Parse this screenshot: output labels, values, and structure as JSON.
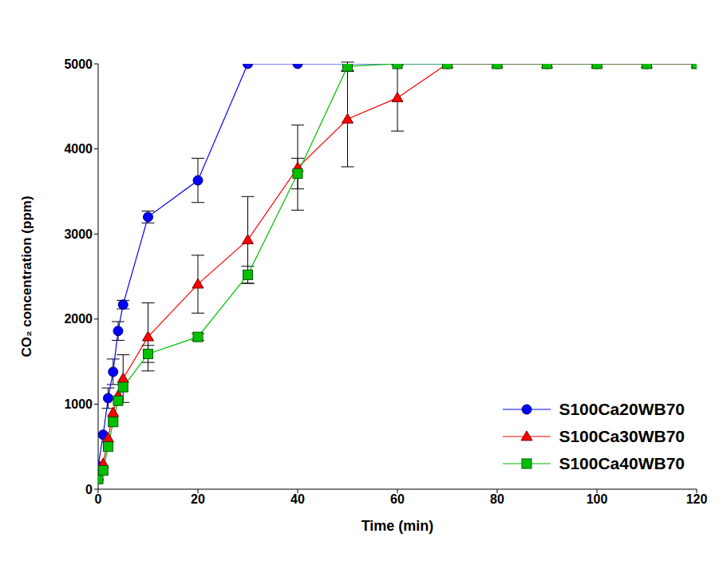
{
  "chart_data": {
    "type": "line",
    "x_label": "Time (min)",
    "y_label": "CO₂ concentration (ppm)",
    "x": [
      0,
      1,
      2,
      3,
      4,
      5,
      10,
      20,
      30,
      40,
      50,
      60,
      70,
      80,
      90,
      100,
      110,
      120
    ],
    "xlim": [
      0,
      120
    ],
    "xticks": [
      0,
      20,
      40,
      60,
      80,
      100,
      120
    ],
    "ylim": [
      0,
      5000
    ],
    "yticks": [
      0,
      1000,
      2000,
      3000,
      4000,
      5000
    ],
    "grid": false,
    "legend": "lower right",
    "series": [
      {
        "name": "S100Ca20WB70",
        "color": "#0000ff",
        "marker": "circle",
        "values": [
          270,
          640,
          1070,
          1380,
          1860,
          2170,
          3200,
          3630,
          5000,
          5000,
          5000,
          5000,
          5000,
          5000,
          5000,
          5000,
          5000,
          5000
        ],
        "errors": [
          null,
          null,
          120,
          150,
          110,
          50,
          70,
          260,
          null,
          null,
          null,
          null,
          null,
          null,
          null,
          null,
          null,
          null
        ]
      },
      {
        "name": "S100Ca30WB70",
        "color": "#ff0000",
        "marker": "triangle",
        "values": [
          150,
          300,
          600,
          900,
          1100,
          1300,
          1790,
          2410,
          2930,
          3780,
          4350,
          4600,
          5000,
          5000,
          5000,
          5000,
          5000,
          5000
        ],
        "errors": [
          null,
          null,
          null,
          null,
          null,
          280,
          400,
          340,
          510,
          500,
          560,
          390,
          null,
          null,
          null,
          null,
          null,
          null
        ]
      },
      {
        "name": "S100Ca40WB70",
        "color": "#00c000",
        "marker": "square",
        "values": [
          120,
          220,
          500,
          790,
          1040,
          1200,
          1590,
          1790,
          2520,
          3710,
          4970,
          5000,
          5000,
          5000,
          5000,
          5000,
          5000,
          5000
        ],
        "errors": [
          null,
          null,
          null,
          null,
          null,
          null,
          100,
          40,
          100,
          180,
          50,
          null,
          null,
          null,
          null,
          null,
          null,
          null
        ]
      }
    ]
  }
}
